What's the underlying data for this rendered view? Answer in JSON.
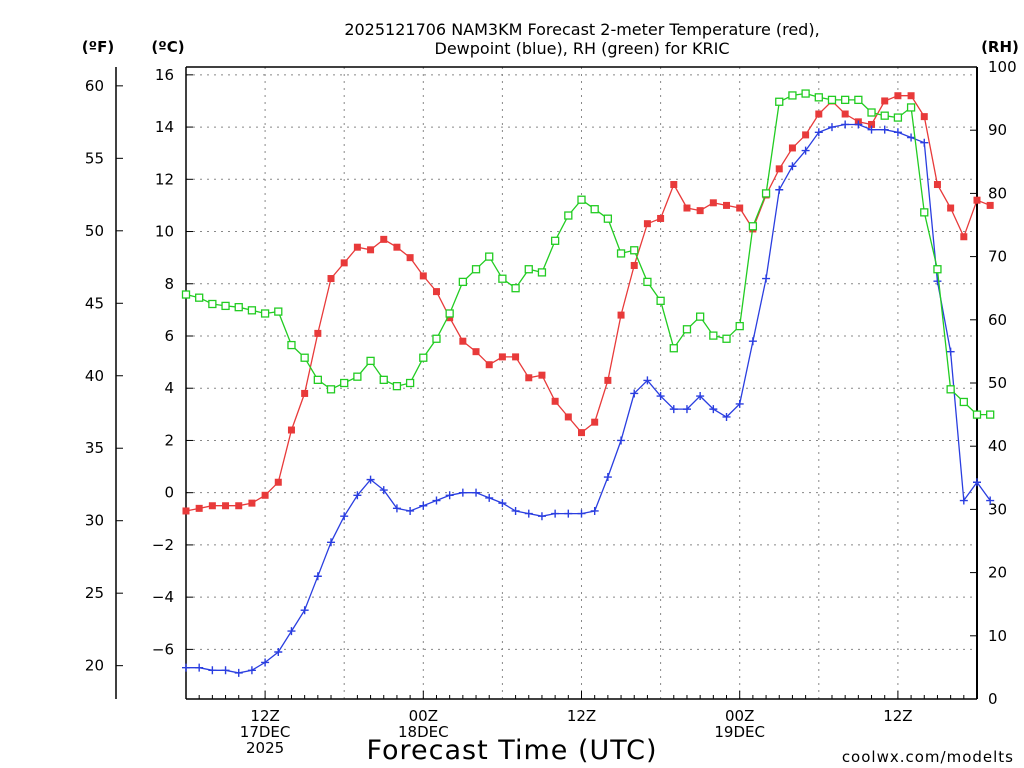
{
  "chart_data": {
    "type": "line",
    "title_line1": "2025121706 NAM3KM Forecast 2-meter Temperature (red),",
    "title_line2": "Dewpoint (blue), RH (green) for KRIC",
    "xlabel": "Forecast Time (UTC)",
    "credit": "coolwx.com/modelts",
    "units": {
      "f": "(ºF)",
      "c": "(ºC)",
      "rh": "(RH)"
    },
    "colors": {
      "temperature": "#e83a3a",
      "dewpoint": "#2a3ee0",
      "rh": "#22cc22",
      "axis": "#000000",
      "grid": "#888888"
    },
    "x_range_hours": [
      8,
      68
    ],
    "c_range": [
      -7.9,
      16.3
    ],
    "f_range": [
      17.7,
      61.3
    ],
    "rh_range": [
      0,
      100
    ],
    "f_ticks": [
      20,
      25,
      30,
      35,
      40,
      45,
      50,
      55,
      60
    ],
    "c_ticks": [
      -6,
      -4,
      -2,
      0,
      2,
      4,
      6,
      8,
      10,
      12,
      14,
      16
    ],
    "rh_ticks": [
      0,
      10,
      20,
      30,
      40,
      50,
      60,
      70,
      80,
      90,
      100
    ],
    "x_ticks": [
      {
        "hour": 14,
        "lines": [
          "12Z",
          "17DEC",
          "2025"
        ]
      },
      {
        "hour": 26,
        "lines": [
          "00Z",
          "18DEC"
        ]
      },
      {
        "hour": 38,
        "lines": [
          "12Z"
        ]
      },
      {
        "hour": 50,
        "lines": [
          "00Z",
          "19DEC"
        ]
      },
      {
        "hour": 62,
        "lines": [
          "12Z"
        ]
      }
    ],
    "series": [
      {
        "name": "Temperature (red)",
        "unit": "C",
        "marker": "filled-square",
        "values": [
          -0.7,
          -0.6,
          -0.5,
          -0.5,
          -0.5,
          -0.4,
          -0.1,
          0.4,
          2.4,
          3.8,
          6.1,
          8.2,
          8.8,
          9.4,
          9.3,
          9.7,
          9.4,
          9.0,
          8.3,
          7.7,
          6.7,
          5.8,
          5.4,
          4.9,
          5.2,
          5.2,
          4.4,
          4.5,
          3.5,
          2.9,
          2.3,
          2.7,
          4.3,
          6.8,
          8.7,
          10.3,
          10.5,
          11.8,
          10.9,
          10.8,
          11.1,
          11.0,
          10.9,
          10.1,
          11.4,
          12.4,
          13.2,
          13.7,
          14.5,
          15.0,
          14.5,
          14.2,
          14.1,
          15.0,
          15.2,
          15.2,
          14.4,
          11.8,
          10.9,
          9.8,
          11.2,
          11.0
        ]
      },
      {
        "name": "Dewpoint (blue)",
        "unit": "C",
        "marker": "plus",
        "values": [
          -6.7,
          -6.7,
          -6.8,
          -6.8,
          -6.9,
          -6.8,
          -6.5,
          -6.1,
          -5.3,
          -4.5,
          -3.2,
          -1.9,
          -0.9,
          -0.1,
          0.5,
          0.1,
          -0.6,
          -0.7,
          -0.5,
          -0.3,
          -0.1,
          0.0,
          0.0,
          -0.2,
          -0.4,
          -0.7,
          -0.8,
          -0.9,
          -0.8,
          -0.8,
          -0.8,
          -0.7,
          0.6,
          2.0,
          3.8,
          4.3,
          3.7,
          3.2,
          3.2,
          3.7,
          3.2,
          2.9,
          3.4,
          5.8,
          8.2,
          11.6,
          12.5,
          13.1,
          13.8,
          14.0,
          14.1,
          14.1,
          13.9,
          13.9,
          13.8,
          13.6,
          13.4,
          8.1,
          5.4,
          -0.3,
          0.4,
          -0.3
        ]
      },
      {
        "name": "RH (green)",
        "unit": "%",
        "marker": "open-square",
        "values": [
          64,
          63.5,
          62.5,
          62.2,
          62,
          61.5,
          61,
          61.3,
          56,
          54,
          50.5,
          49,
          50,
          51,
          53.5,
          50.5,
          49.5,
          50,
          54,
          57,
          61,
          66,
          68,
          70,
          66.5,
          65,
          68,
          67.5,
          72.5,
          76.5,
          79,
          77.5,
          76,
          70.5,
          71,
          66,
          63,
          55.5,
          58.5,
          60.5,
          57.5,
          57,
          59,
          74.8,
          80,
          94.5,
          95.5,
          95.8,
          95.2,
          94.8,
          94.8,
          94.8,
          92.8,
          92.3,
          92.0,
          93.6,
          77.0,
          68.0,
          49.0,
          47.0,
          45.0,
          45.0
        ]
      }
    ]
  }
}
